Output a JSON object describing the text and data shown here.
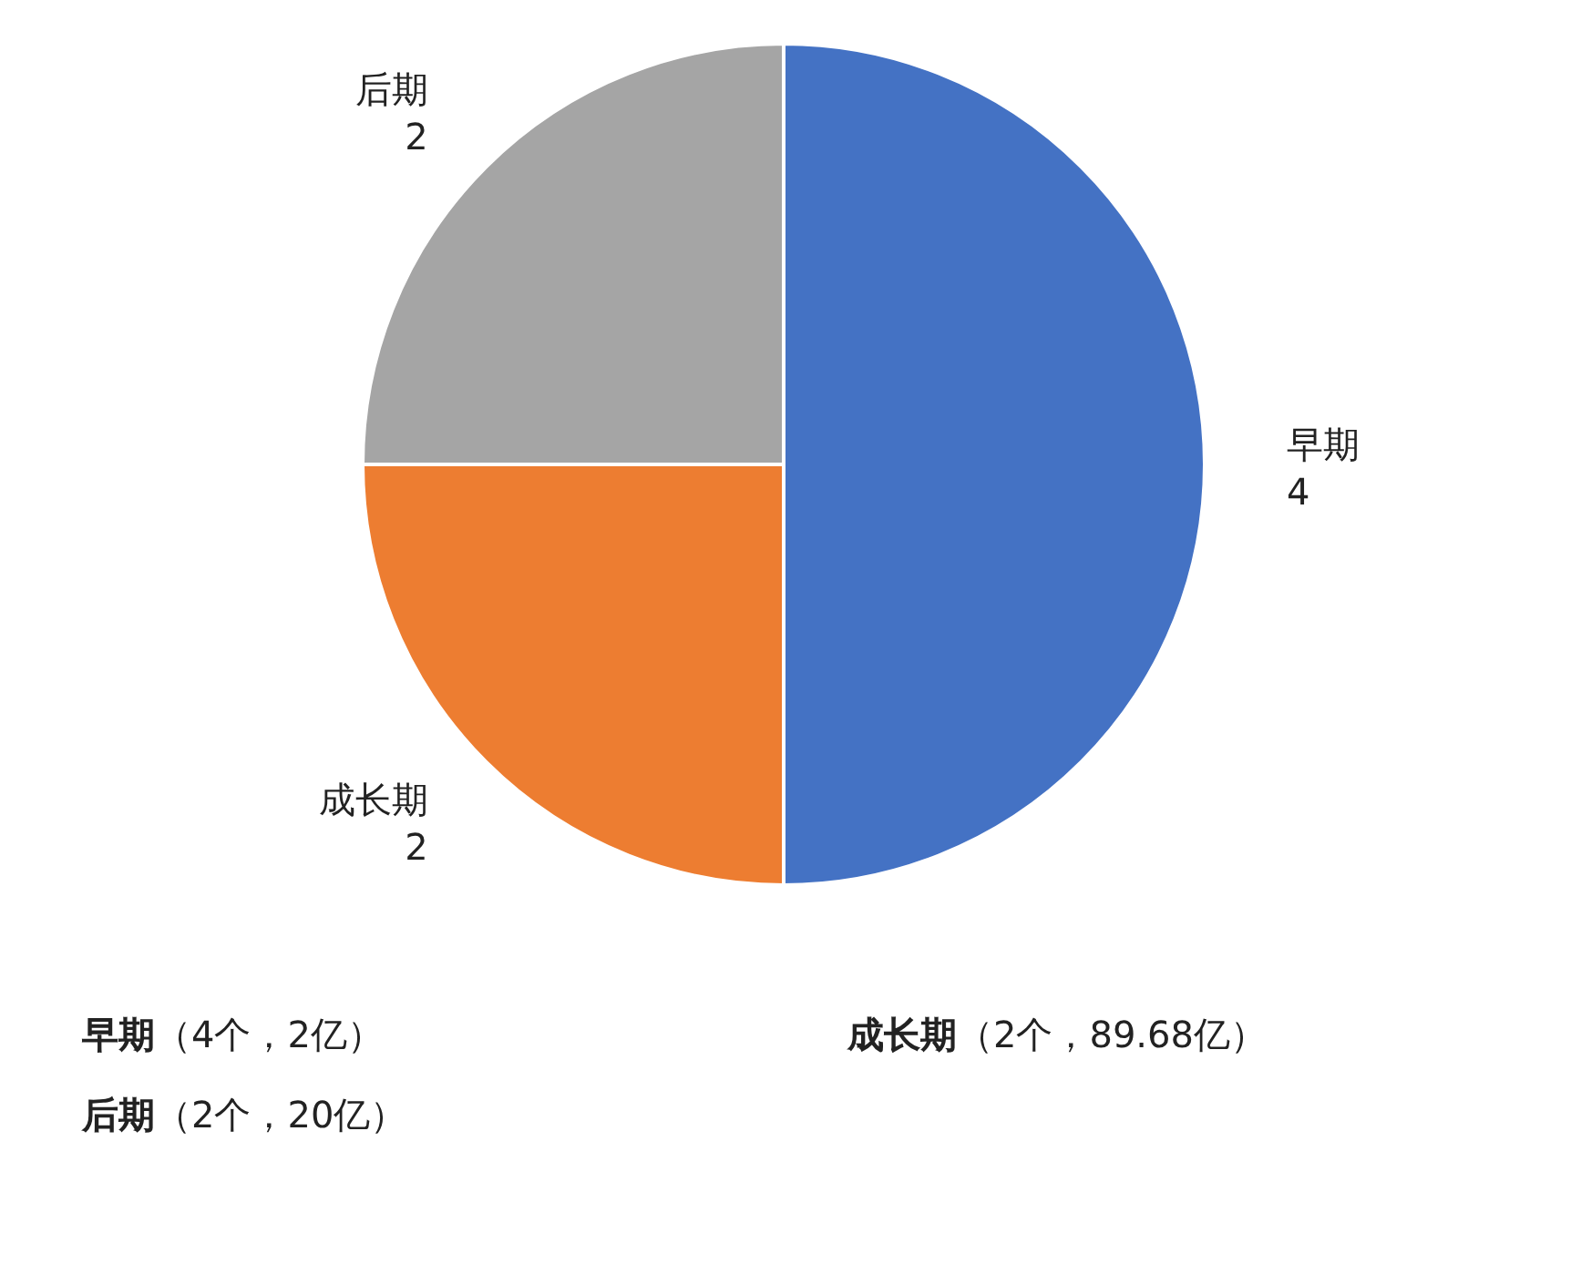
{
  "chart_data": {
    "type": "pie",
    "categories": [
      "早期",
      "成长期",
      "后期"
    ],
    "values": [
      4,
      2,
      2
    ],
    "colors": [
      "#4472c4",
      "#ed7d31",
      "#a5a5a5"
    ],
    "data_labels": true,
    "annotations": [
      "早期（4个，2亿）",
      "成长期（2个，89.68亿）",
      "后期（2个，20亿）"
    ]
  }
}
